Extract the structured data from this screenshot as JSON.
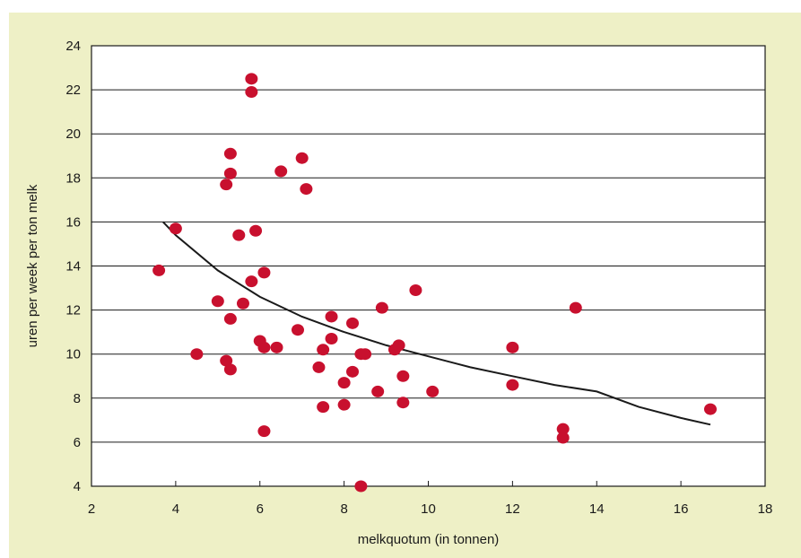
{
  "chart_data": {
    "type": "scatter",
    "title": "",
    "xlabel": "melkquotum (in tonnen)",
    "ylabel": "uren per week per ton melk",
    "xlim": [
      2,
      18
    ],
    "ylim": [
      4,
      24
    ],
    "x_ticks": [
      "2",
      "4",
      "6",
      "8",
      "10",
      "12",
      "14",
      "16",
      "18"
    ],
    "y_ticks": [
      "4",
      "6",
      "8",
      "10",
      "12",
      "14",
      "16",
      "18",
      "20",
      "22",
      "24"
    ],
    "grid": "horizontal",
    "colors": {
      "background": "#eef0c6",
      "plot_area": "#ffffff",
      "points": "#c8102e",
      "trend": "#1a1a1a"
    },
    "series": [
      {
        "type": "scatter",
        "points": [
          [
            3.6,
            13.8
          ],
          [
            4.0,
            15.7
          ],
          [
            4.5,
            10.0
          ],
          [
            5.0,
            12.4
          ],
          [
            5.2,
            9.7
          ],
          [
            5.2,
            17.7
          ],
          [
            5.3,
            9.3
          ],
          [
            5.3,
            11.6
          ],
          [
            5.3,
            18.2
          ],
          [
            5.3,
            19.1
          ],
          [
            5.5,
            15.4
          ],
          [
            5.6,
            12.3
          ],
          [
            5.8,
            13.3
          ],
          [
            5.8,
            21.9
          ],
          [
            5.8,
            22.5
          ],
          [
            5.9,
            15.6
          ],
          [
            6.0,
            10.6
          ],
          [
            6.1,
            10.3
          ],
          [
            6.1,
            13.7
          ],
          [
            6.1,
            6.5
          ],
          [
            6.4,
            10.3
          ],
          [
            6.5,
            18.3
          ],
          [
            6.9,
            11.1
          ],
          [
            7.0,
            18.9
          ],
          [
            7.1,
            17.5
          ],
          [
            7.4,
            9.4
          ],
          [
            7.5,
            10.2
          ],
          [
            7.5,
            7.6
          ],
          [
            7.7,
            10.7
          ],
          [
            7.7,
            11.7
          ],
          [
            8.0,
            8.7
          ],
          [
            8.0,
            7.7
          ],
          [
            8.2,
            9.2
          ],
          [
            8.2,
            11.4
          ],
          [
            8.4,
            10.0
          ],
          [
            8.5,
            10.0
          ],
          [
            8.4,
            4.0
          ],
          [
            8.8,
            8.3
          ],
          [
            8.9,
            12.1
          ],
          [
            9.2,
            10.2
          ],
          [
            9.3,
            10.4
          ],
          [
            9.4,
            9.0
          ],
          [
            9.4,
            7.8
          ],
          [
            9.7,
            12.9
          ],
          [
            10.1,
            8.3
          ],
          [
            12.0,
            10.3
          ],
          [
            12.0,
            8.6
          ],
          [
            13.2,
            6.6
          ],
          [
            13.2,
            6.2
          ],
          [
            13.5,
            12.1
          ],
          [
            16.7,
            7.5
          ]
        ]
      }
    ],
    "trendline": {
      "type": "power",
      "x": [
        3.7,
        4,
        5,
        6,
        7,
        8,
        9,
        10,
        11,
        12,
        13,
        14,
        15,
        16,
        16.7
      ],
      "y": [
        16.0,
        15.4,
        13.8,
        12.6,
        11.7,
        11.0,
        10.4,
        9.9,
        9.4,
        9.0,
        8.6,
        8.3,
        7.6,
        7.1,
        6.8
      ]
    }
  }
}
